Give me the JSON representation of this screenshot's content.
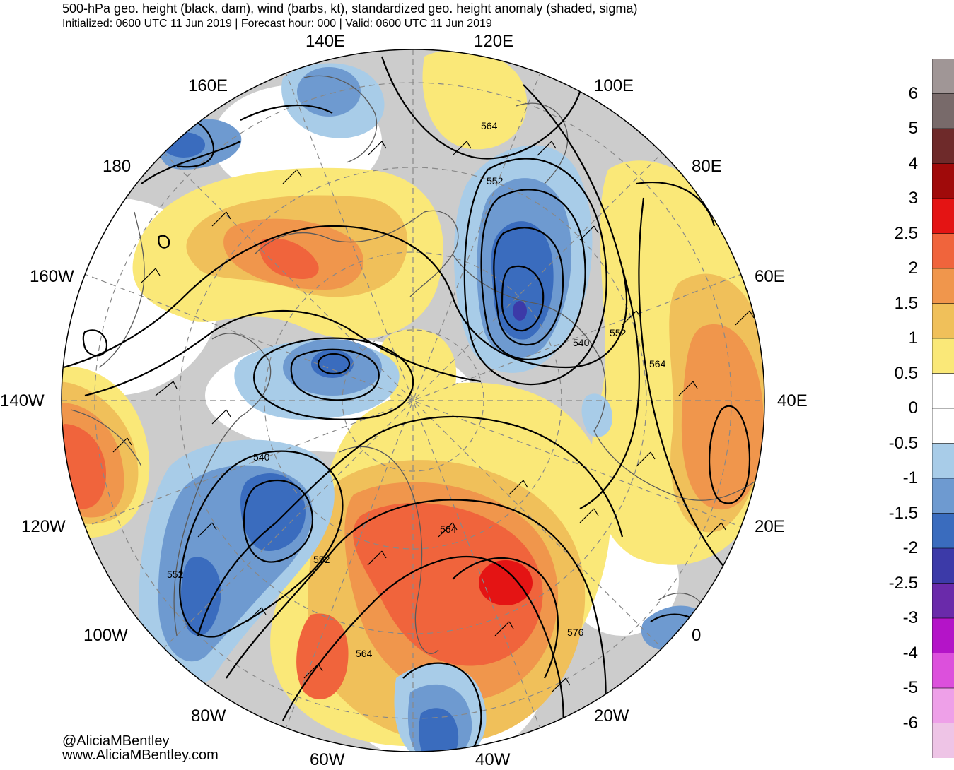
{
  "header": {
    "title": "500-hPa geo. height (black, dam), wind (barbs, kt), standardized geo. height anomaly (shaded, sigma)",
    "subtitle": "Initialized: 0600 UTC 11 Jun 2019 | Forecast hour: 000 | Valid: 0600 UTC 11 Jun 2019"
  },
  "longitude_labels": {
    "l140e": "140E",
    "l120e": "120E",
    "l160e": "160E",
    "l100e": "100E",
    "l180": "180",
    "l80e": "80E",
    "l160w": "160W",
    "l60e": "60E",
    "l140w": "140W",
    "l40e": "40E",
    "l120w": "120W",
    "l20e": "20E",
    "l100w": "100W",
    "l0": "0",
    "l80w": "80W",
    "l20w": "20W",
    "l60w": "60W",
    "l40w": "40W"
  },
  "contour_labels": {
    "c564a": "564",
    "c552a": "552",
    "c540a": "540",
    "c552b": "552",
    "c564b": "564",
    "c540b": "540",
    "c564c": "564",
    "c552c": "552",
    "c552d": "552",
    "c564d": "564",
    "c576": "576"
  },
  "colorbar": {
    "labels": [
      "6",
      "5",
      "4",
      "3",
      "2.5",
      "2",
      "1.5",
      "1",
      "0.5",
      "0",
      "-0.5",
      "-1",
      "-1.5",
      "-2",
      "-2.5",
      "-3",
      "-4",
      "-5",
      "-6"
    ],
    "colors": [
      "#a09696",
      "#786a6a",
      "#6e2a2a",
      "#a00a0a",
      "#e41414",
      "#f0643c",
      "#f0964c",
      "#f0c05a",
      "#fae878",
      "#ffffff",
      "#ffffff",
      "#a8cce8",
      "#6e9ad0",
      "#3a6cbe",
      "#3c3aa8",
      "#6a2aaa",
      "#b414c8",
      "#dc50dc",
      "#eea0e8",
      "#eec4e6"
    ]
  },
  "credits": {
    "handle": "@AliciaMBentley",
    "website": "www.AliciaMBentley.com"
  },
  "colors": {
    "ocean_gray": "#cccccc",
    "land_line": "#5a5a5a",
    "yellow": "#fae878",
    "orange1": "#f0c05a",
    "orange2": "#f0964c",
    "red1": "#f0643c",
    "red2": "#e41414",
    "blue1": "#a8cce8",
    "blue2": "#6e9ad0",
    "blue3": "#3a6cbe",
    "blue4": "#3c3aa8"
  }
}
